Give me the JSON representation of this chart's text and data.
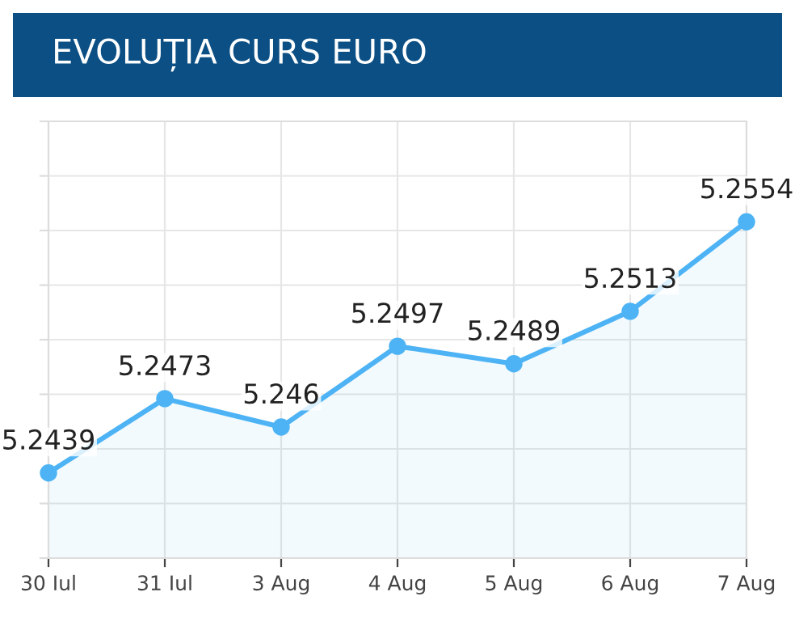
{
  "chart_data": {
    "type": "area",
    "title": "EVOLUȚIA CURS EURO",
    "categories": [
      "30 Iul",
      "31 Iul",
      "3 Aug",
      "4 Aug",
      "5 Aug",
      "6 Aug",
      "7 Aug"
    ],
    "series": [
      {
        "color": "#4db3f5",
        "values": [
          5.2439,
          5.2473,
          5.246,
          5.2497,
          5.2489,
          5.2513,
          5.2554
        ]
      }
    ],
    "ylim": [
      5.24,
      5.26
    ],
    "yticks": [
      {
        "value": 5.24,
        "label": null
      },
      {
        "value": 5.2425,
        "label": null
      },
      {
        "value": 5.245,
        "label": null
      },
      {
        "value": 5.2475,
        "label": null
      },
      {
        "value": 5.25,
        "label": null
      },
      {
        "value": 5.2525,
        "label": null
      },
      {
        "value": 5.255,
        "label": null
      },
      {
        "value": 5.2575,
        "label": null
      },
      {
        "value": 5.26,
        "label": null
      }
    ],
    "tick_labels": "x",
    "grid": true,
    "marker": "circle",
    "line_style": "solid",
    "data_labels": true
  }
}
